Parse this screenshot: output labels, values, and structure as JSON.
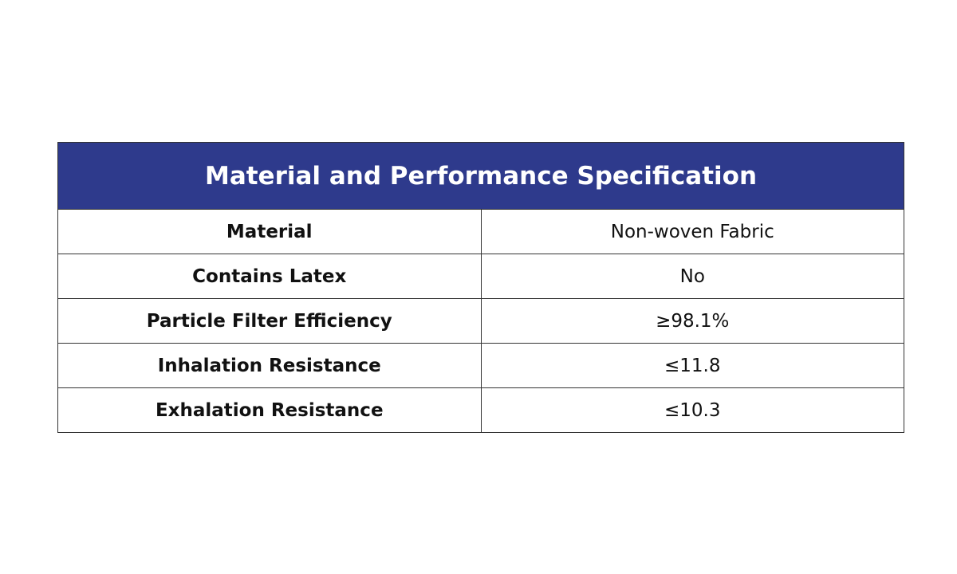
{
  "table": {
    "title": "Material and Performance Specification",
    "rows": [
      [
        "Material",
        "Non-woven Fabric"
      ],
      [
        "Contains Latex",
        "No"
      ],
      [
        "Particle Filter Efficiency",
        "≥98.1%"
      ],
      [
        "Inhalation Resistance",
        "≤11.8"
      ],
      [
        "Exhalation Resistance",
        "≤10.3"
      ]
    ]
  }
}
